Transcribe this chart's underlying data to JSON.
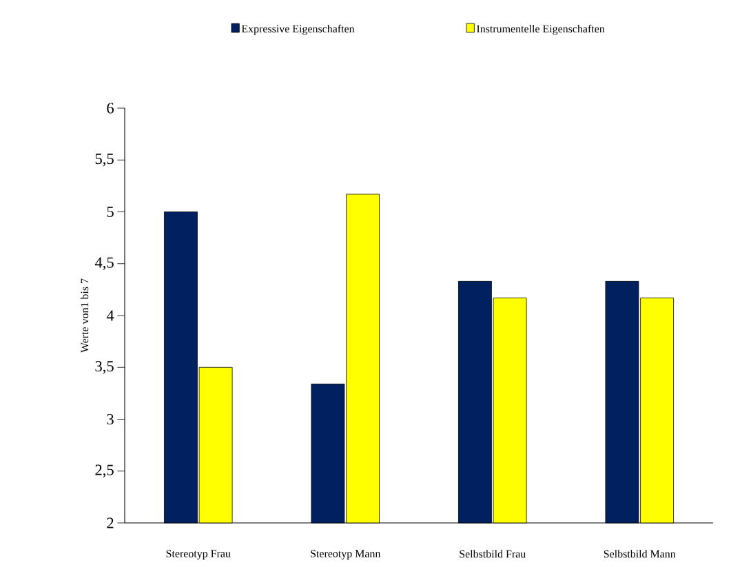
{
  "chart_data": {
    "type": "bar",
    "ylabel": "Werte von1 bis 7",
    "categories": [
      "Stereotyp Frau",
      "Stereotyp Mann",
      "Selbstbild Frau",
      "Selbstbild Mann"
    ],
    "series": [
      {
        "name": "Expressive Eigenschaften",
        "color": "#002060",
        "values": [
          5.0,
          3.34,
          4.33,
          4.33
        ]
      },
      {
        "name": "Instrumentelle Eigenschaften",
        "color": "#ffff00",
        "values": [
          3.5,
          5.17,
          4.17,
          4.17
        ]
      }
    ],
    "ylim": [
      2,
      6
    ],
    "yticks": [
      2,
      {
        "value": 2.5,
        "label": "2,5"
      },
      3,
      {
        "value": 3.5,
        "label": "3,5"
      },
      4,
      {
        "value": 4.5,
        "label": "4,5"
      },
      5,
      {
        "value": 5.5,
        "label": "5,5"
      },
      6
    ],
    "legend": "top",
    "grid": false
  }
}
